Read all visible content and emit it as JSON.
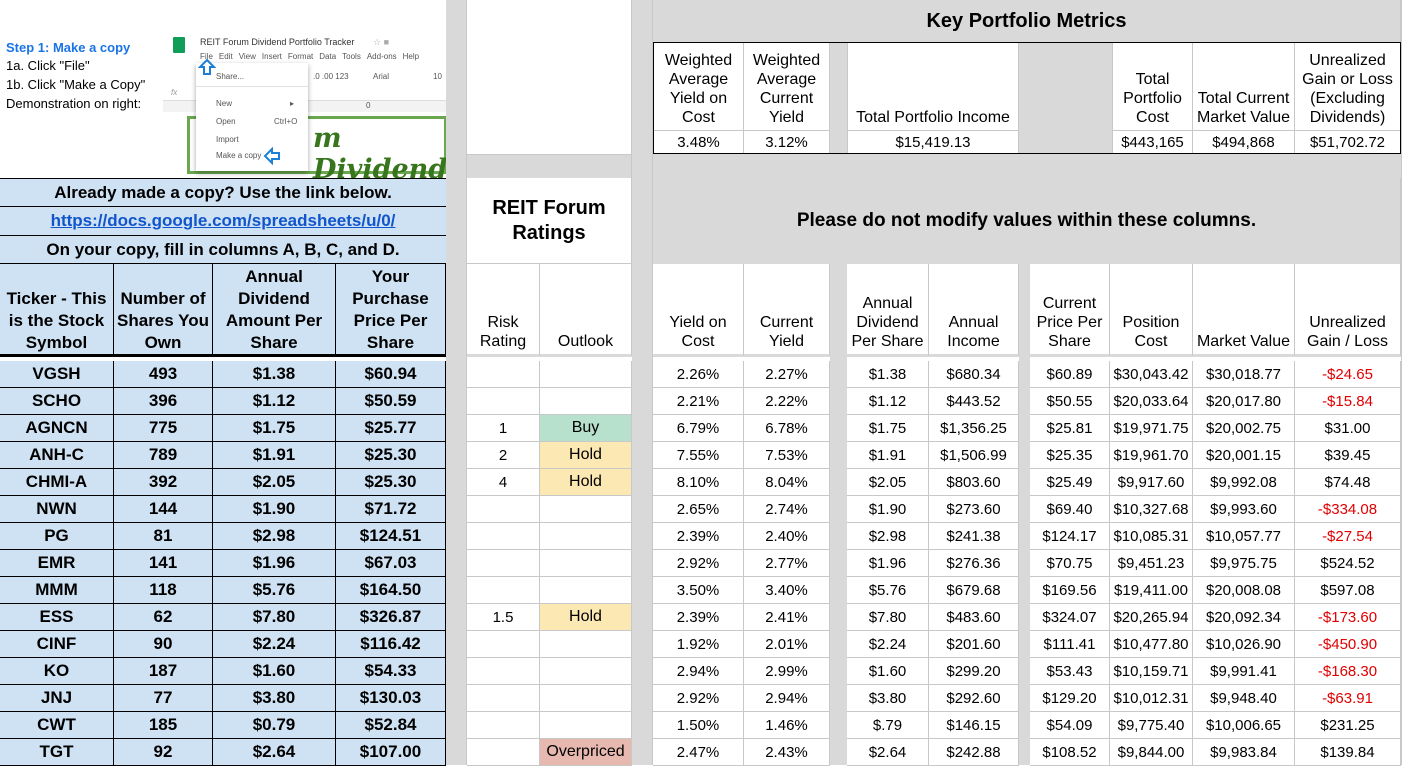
{
  "instructions": {
    "step_title": "Step 1: Make a copy",
    "line1": "1a. Click \"File\"",
    "line2": "1b. Click \"Make a Copy\"",
    "line3": "Demonstration on right:"
  },
  "demo": {
    "doc_title": "REIT Forum Dividend Portfolio Tracker",
    "menu": [
      "File",
      "Edit",
      "View",
      "Insert",
      "Format",
      "Data",
      "Tools",
      "Add-ons",
      "Help"
    ],
    "toolbar_format": ".0  .00  123",
    "toolbar_font": "Arial",
    "toolbar_size": "10",
    "fx": "fx",
    "col_zero": "0",
    "menu_items": {
      "share": "Share...",
      "new": "New",
      "open": "Open",
      "open_shortcut": "Ctrl+O",
      "import": "Import",
      "make_copy": "Make a copy"
    },
    "banner_text": "m Dividend"
  },
  "copy_box": {
    "already": "Already made a copy? Use the link below.",
    "link": "https://docs.google.com/spreadsheets/u/0/",
    "fill": "On your copy, fill in columns A, B, C, and D."
  },
  "ratings_header": "REIT Forum Ratings",
  "notice": "Please do not modify values within these columns.",
  "metrics": {
    "title": "Key Portfolio Metrics",
    "labels": {
      "wayc": "Weighted Average Yield on Cost",
      "wacy": "Weighted Average Current Yield",
      "tpi": "Total Portfolio Income",
      "tpc": "Total Portfolio Cost",
      "tcmv": "Total Current Market Value",
      "ugl": "Unrealized Gain or Loss (Excluding Dividends)"
    },
    "values": {
      "wayc": "3.48%",
      "wacy": "3.12%",
      "tpi": "$15,419.13",
      "tpc": "$443,165",
      "tcmv": "$494,868",
      "ugl": "$51,702.72"
    }
  },
  "columns": {
    "ticker": "Ticker - This is the Stock Symbol",
    "shares": "Number of Shares You Own",
    "div": "Annual Dividend Amount Per Share",
    "price": "Your Purchase Price Per Share",
    "risk": "Risk Rating",
    "outlook": "Outlook",
    "yoc": "Yield on Cost",
    "cy": "Current Yield",
    "adps": "Annual Dividend Per Share",
    "income": "Annual Income",
    "cpps": "Current Price Per Share",
    "pos": "Position Cost",
    "mv": "Market Value",
    "ugl": "Unrealized Gain / Loss"
  },
  "rows": [
    {
      "ticker": "VGSH",
      "shares": "493",
      "div": "$1.38",
      "price": "$60.94",
      "risk": "",
      "outlook": "",
      "yoc": "2.26%",
      "cy": "2.27%",
      "adps": "$1.38",
      "income": "$680.34",
      "cpps": "$60.89",
      "pos": "$30,043.42",
      "mv": "$30,018.77",
      "ugl": "-$24.65"
    },
    {
      "ticker": "SCHO",
      "shares": "396",
      "div": "$1.12",
      "price": "$50.59",
      "risk": "",
      "outlook": "",
      "yoc": "2.21%",
      "cy": "2.22%",
      "adps": "$1.12",
      "income": "$443.52",
      "cpps": "$50.55",
      "pos": "$20,033.64",
      "mv": "$20,017.80",
      "ugl": "-$15.84"
    },
    {
      "ticker": "AGNCN",
      "shares": "775",
      "div": "$1.75",
      "price": "$25.77",
      "risk": "1",
      "outlook": "Buy",
      "yoc": "6.79%",
      "cy": "6.78%",
      "adps": "$1.75",
      "income": "$1,356.25",
      "cpps": "$25.81",
      "pos": "$19,971.75",
      "mv": "$20,002.75",
      "ugl": "$31.00"
    },
    {
      "ticker": "ANH-C",
      "shares": "789",
      "div": "$1.91",
      "price": "$25.30",
      "risk": "2",
      "outlook": "Hold",
      "yoc": "7.55%",
      "cy": "7.53%",
      "adps": "$1.91",
      "income": "$1,506.99",
      "cpps": "$25.35",
      "pos": "$19,961.70",
      "mv": "$20,001.15",
      "ugl": "$39.45"
    },
    {
      "ticker": "CHMI-A",
      "shares": "392",
      "div": "$2.05",
      "price": "$25.30",
      "risk": "4",
      "outlook": "Hold",
      "yoc": "8.10%",
      "cy": "8.04%",
      "adps": "$2.05",
      "income": "$803.60",
      "cpps": "$25.49",
      "pos": "$9,917.60",
      "mv": "$9,992.08",
      "ugl": "$74.48"
    },
    {
      "ticker": "NWN",
      "shares": "144",
      "div": "$1.90",
      "price": "$71.72",
      "risk": "",
      "outlook": "",
      "yoc": "2.65%",
      "cy": "2.74%",
      "adps": "$1.90",
      "income": "$273.60",
      "cpps": "$69.40",
      "pos": "$10,327.68",
      "mv": "$9,993.60",
      "ugl": "-$334.08"
    },
    {
      "ticker": "PG",
      "shares": "81",
      "div": "$2.98",
      "price": "$124.51",
      "risk": "",
      "outlook": "",
      "yoc": "2.39%",
      "cy": "2.40%",
      "adps": "$2.98",
      "income": "$241.38",
      "cpps": "$124.17",
      "pos": "$10,085.31",
      "mv": "$10,057.77",
      "ugl": "-$27.54"
    },
    {
      "ticker": "EMR",
      "shares": "141",
      "div": "$1.96",
      "price": "$67.03",
      "risk": "",
      "outlook": "",
      "yoc": "2.92%",
      "cy": "2.77%",
      "adps": "$1.96",
      "income": "$276.36",
      "cpps": "$70.75",
      "pos": "$9,451.23",
      "mv": "$9,975.75",
      "ugl": "$524.52"
    },
    {
      "ticker": "MMM",
      "shares": "118",
      "div": "$5.76",
      "price": "$164.50",
      "risk": "",
      "outlook": "",
      "yoc": "3.50%",
      "cy": "3.40%",
      "adps": "$5.76",
      "income": "$679.68",
      "cpps": "$169.56",
      "pos": "$19,411.00",
      "mv": "$20,008.08",
      "ugl": "$597.08"
    },
    {
      "ticker": "ESS",
      "shares": "62",
      "div": "$7.80",
      "price": "$326.87",
      "risk": "1.5",
      "outlook": "Hold",
      "yoc": "2.39%",
      "cy": "2.41%",
      "adps": "$7.80",
      "income": "$483.60",
      "cpps": "$324.07",
      "pos": "$20,265.94",
      "mv": "$20,092.34",
      "ugl": "-$173.60"
    },
    {
      "ticker": "CINF",
      "shares": "90",
      "div": "$2.24",
      "price": "$116.42",
      "risk": "",
      "outlook": "",
      "yoc": "1.92%",
      "cy": "2.01%",
      "adps": "$2.24",
      "income": "$201.60",
      "cpps": "$111.41",
      "pos": "$10,477.80",
      "mv": "$10,026.90",
      "ugl": "-$450.90"
    },
    {
      "ticker": "KO",
      "shares": "187",
      "div": "$1.60",
      "price": "$54.33",
      "risk": "",
      "outlook": "",
      "yoc": "2.94%",
      "cy": "2.99%",
      "adps": "$1.60",
      "income": "$299.20",
      "cpps": "$53.43",
      "pos": "$10,159.71",
      "mv": "$9,991.41",
      "ugl": "-$168.30"
    },
    {
      "ticker": "JNJ",
      "shares": "77",
      "div": "$3.80",
      "price": "$130.03",
      "risk": "",
      "outlook": "",
      "yoc": "2.92%",
      "cy": "2.94%",
      "adps": "$3.80",
      "income": "$292.60",
      "cpps": "$129.20",
      "pos": "$10,012.31",
      "mv": "$9,948.40",
      "ugl": "-$63.91"
    },
    {
      "ticker": "CWT",
      "shares": "185",
      "div": "$0.79",
      "price": "$52.84",
      "risk": "",
      "outlook": "",
      "yoc": "1.50%",
      "cy": "1.46%",
      "adps": "$.79",
      "income": "$146.15",
      "cpps": "$54.09",
      "pos": "$9,775.40",
      "mv": "$10,006.65",
      "ugl": "$231.25"
    },
    {
      "ticker": "TGT",
      "shares": "92",
      "div": "$2.64",
      "price": "$107.00",
      "risk": "",
      "outlook": "Overpriced",
      "yoc": "2.47%",
      "cy": "2.43%",
      "adps": "$2.64",
      "income": "$242.88",
      "cpps": "$108.52",
      "pos": "$9,844.00",
      "mv": "$9,983.84",
      "ugl": "$139.84"
    }
  ],
  "colors": {
    "input_blue": "#cfe2f3",
    "separator_gray": "#d9d9d9",
    "buy_green": "#b7e1cd",
    "hold_yellow": "#fce8b2",
    "overpriced_red": "#e6b8af",
    "loss_red": "#e00000",
    "link_blue": "#1155cc"
  }
}
